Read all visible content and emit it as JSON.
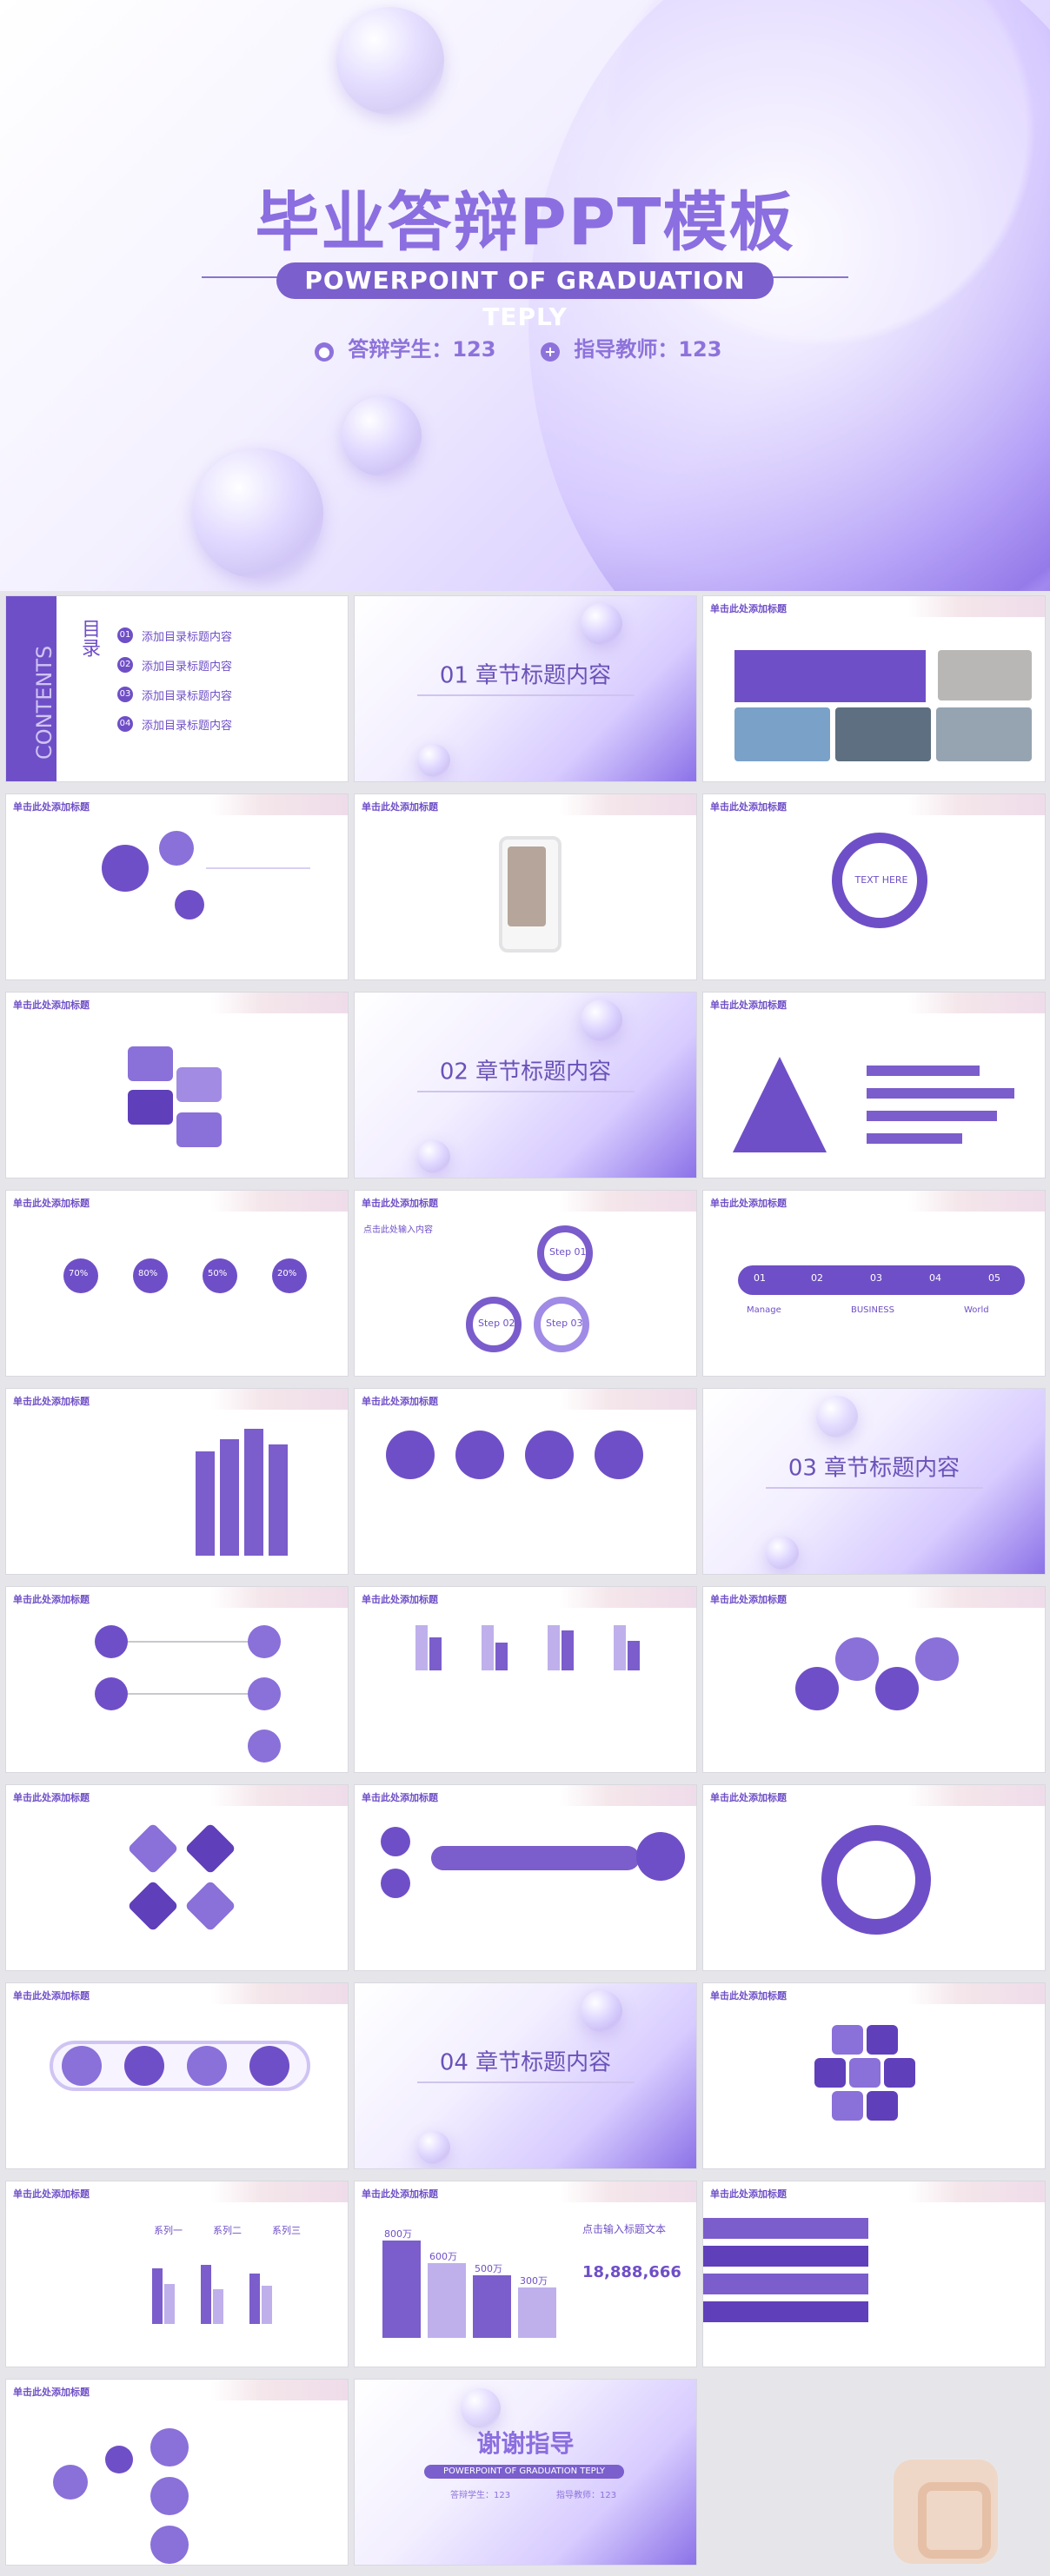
{
  "hero": {
    "title": "毕业答辩PPT模板",
    "subtitle": "POWERPOINT OF GRADUATION TEPLY",
    "student_label": "答辩学生：123",
    "teacher_label": "指导教师：123"
  },
  "slides": {
    "slide_title": "单击此处添加标题",
    "contents": {
      "vertical_word": "CONTENTS",
      "catalog": "目录",
      "items": [
        "添加目录标题内容",
        "添加目录标题内容",
        "添加目录标题内容",
        "添加目录标题内容"
      ]
    },
    "sections": [
      {
        "num": "01",
        "label": "章节标题内容"
      },
      {
        "num": "02",
        "label": "章节标题内容"
      },
      {
        "num": "03",
        "label": "章节标题内容"
      },
      {
        "num": "04",
        "label": "章节标题内容"
      }
    ],
    "thanks": {
      "title": "谢谢指导",
      "subtitle": "POWERPOINT OF GRADUATION TEPLY",
      "left": "答辩学生：123",
      "right": "指导教师：123"
    },
    "steps": {
      "step1": "Step 01",
      "step2": "Step 02",
      "step3": "Step 03",
      "input_title": "点击此处输入内容"
    },
    "percent_labels": [
      "70%",
      "80%",
      "50%",
      "20%"
    ],
    "wave_labels": [
      "01",
      "02",
      "03",
      "04",
      "05"
    ],
    "wave_words": [
      "Manage",
      "BUSINESS",
      "World"
    ],
    "center_text": "TEXT HERE",
    "stats": {
      "v1": "800万",
      "v2": "600万",
      "v3": "500万",
      "v4": "300万",
      "big": "18,888,666",
      "title": "点击输入标题文本"
    },
    "chart_series": [
      "系列一",
      "系列二",
      "系列三"
    ]
  }
}
